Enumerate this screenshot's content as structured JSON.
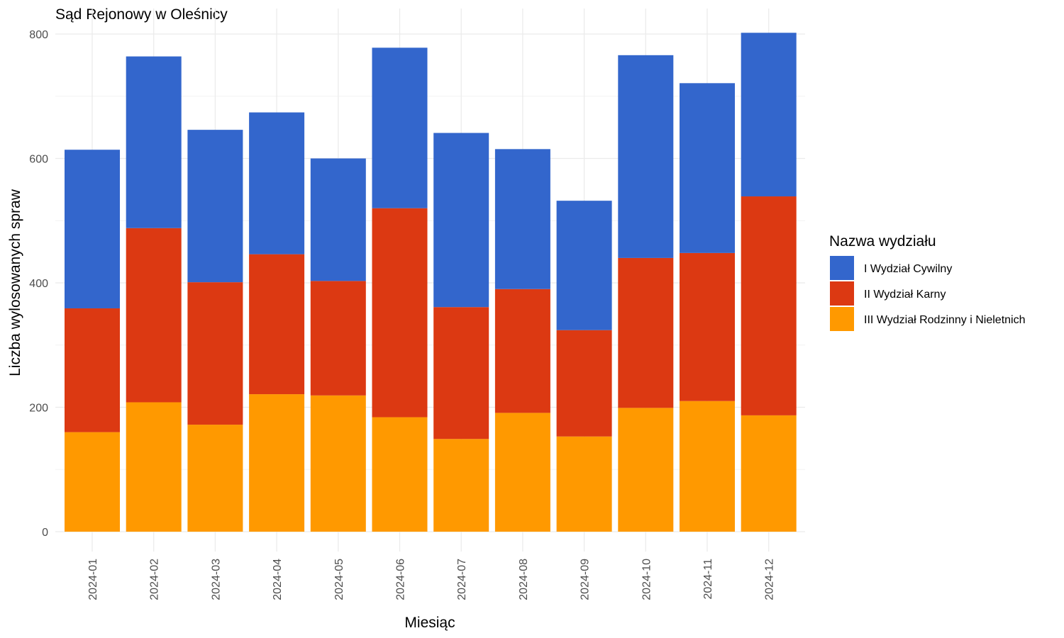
{
  "chart_data": {
    "type": "bar",
    "stacked": true,
    "title": "Sąd Rejonowy w Oleśnicy",
    "xlabel": "Miesiąc",
    "ylabel": "Liczba wylosowanych spraw",
    "ylim": [
      0,
      800
    ],
    "yticks": [
      "0",
      "200",
      "400",
      "600",
      "800"
    ],
    "grid": true,
    "legend": {
      "title": "Nazwa wydziału",
      "position": "right"
    },
    "categories": [
      "2024-01",
      "2024-02",
      "2024-03",
      "2024-04",
      "2024-05",
      "2024-06",
      "2024-07",
      "2024-08",
      "2024-09",
      "2024-10",
      "2024-11",
      "2024-12"
    ],
    "series": [
      {
        "name": "I Wydział Cywilny",
        "color": "#3366cc",
        "values": [
          255,
          276,
          245,
          228,
          197,
          258,
          280,
          225,
          208,
          326,
          273,
          263
        ]
      },
      {
        "name": "II Wydział Karny",
        "color": "#dc3912",
        "values": [
          199,
          280,
          229,
          225,
          184,
          336,
          212,
          199,
          171,
          241,
          238,
          352
        ]
      },
      {
        "name": "III Wydział Rodzinny i Nieletnich",
        "color": "#ff9900",
        "values": [
          160,
          208,
          172,
          221,
          219,
          184,
          149,
          191,
          153,
          199,
          210,
          187
        ]
      }
    ]
  }
}
